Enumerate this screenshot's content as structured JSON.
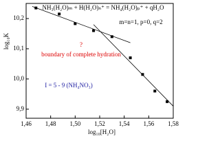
{
  "chart_data": {
    "type": "scatter",
    "title": "NH₃(H₂O)ₘ + H(H₂O)ₙ⁺ = NH₄(H₂O)ₚ⁺ + qH₂O",
    "annotations": [
      "m=n=1, p=0, q=2",
      "?",
      "boundary of complete hydration",
      "I = 5 - 9 (NH₄NO₃)"
    ],
    "x_label": "log₁₀[H₂O]",
    "y_label": "log₁₀K",
    "x": [
      1.468,
      1.487,
      1.5,
      1.515,
      1.53,
      1.545,
      1.555,
      1.565,
      1.575
    ],
    "values": [
      10.235,
      10.215,
      10.183,
      10.16,
      10.14,
      10.07,
      10.015,
      9.96,
      9.925
    ],
    "color": "#000000",
    "fit_lines": [
      {
        "x": [
          1.465,
          1.545
        ],
        "values": [
          10.24,
          10.12
        ]
      },
      {
        "x": [
          1.515,
          1.58
        ],
        "values": [
          10.18,
          9.91
        ]
      }
    ],
    "xlim": [
      1.46,
      1.58
    ],
    "xticks": [
      {
        "value": 1.46,
        "label": "1,46"
      },
      {
        "value": 1.48,
        "label": "1,48"
      },
      {
        "value": 1.5,
        "label": "1,50"
      },
      {
        "value": 1.52,
        "label": "1,52"
      },
      {
        "value": 1.54,
        "label": "1,54"
      },
      {
        "value": 1.56,
        "label": "1,56"
      },
      {
        "value": 1.58,
        "label": "1,58"
      }
    ],
    "ylim": [
      9.87,
      10.25
    ],
    "yticks": [
      {
        "value": 9.9,
        "label": "9,9"
      },
      {
        "value": 10.0,
        "label": "10,0"
      },
      {
        "value": 10.1,
        "label": "10,1"
      },
      {
        "value": 10.2,
        "label": "10,2"
      }
    ]
  }
}
